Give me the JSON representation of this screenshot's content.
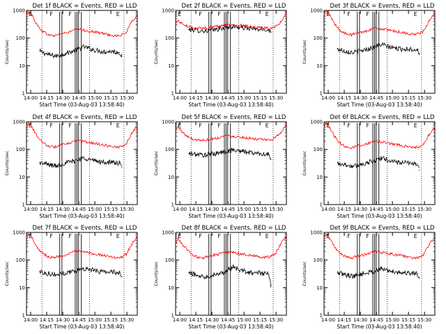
{
  "figure": {
    "background": "#ffffff",
    "axis_color": "#000000",
    "events_color": "#000000",
    "lld_color": "#ff0000"
  },
  "chart_data": [
    {
      "type": "line",
      "title": "Det 1f BLACK = Events, RED = LLD",
      "ylabel": "Counts/sec",
      "xlabel": "Start Time (03-Aug-03 13:58:40)",
      "yscale": "log",
      "ylim": [
        1,
        1000
      ],
      "yticks": [
        "1",
        "10",
        "100",
        "1000"
      ],
      "xlim": [
        0,
        100
      ],
      "xticks": [
        "14:00",
        "14:15",
        "14:30",
        "14:45",
        "15:00",
        "15:15",
        "15:30"
      ],
      "markers": [
        {
          "label": "E",
          "x": 2
        },
        {
          "label": "F",
          "x": 21
        },
        {
          "label": "F",
          "x": 38
        },
        {
          "label": "E",
          "x": 81
        }
      ],
      "series": [
        {
          "name": "Events",
          "color": "#000000",
          "x": [
            12,
            20,
            27,
            35,
            43,
            52,
            60,
            69,
            77,
            84,
            86
          ],
          "y": [
            33,
            25,
            22,
            28,
            34,
            48,
            38,
            32,
            33,
            30,
            22
          ]
        },
        {
          "name": "LLD",
          "color": "#ff0000",
          "x": [
            0,
            2,
            5,
            10,
            15,
            20,
            25,
            30,
            38,
            45,
            52,
            60,
            68,
            75,
            82,
            86,
            90,
            95,
            100
          ],
          "y": [
            700,
            900,
            650,
            280,
            170,
            130,
            120,
            140,
            160,
            210,
            190,
            170,
            150,
            130,
            120,
            130,
            160,
            380,
            700
          ]
        }
      ]
    },
    {
      "type": "line",
      "title": "Det 2f BLACK = Events, RED = LLD",
      "ylabel": "Counts/sec",
      "xlabel": "Start Time (03-Aug-03 13:58:40)",
      "yscale": "log",
      "ylim": [
        1,
        1000
      ],
      "yticks": [
        "1",
        "10",
        "100",
        "1000"
      ],
      "xlim": [
        0,
        100
      ],
      "xticks": [
        "14:00",
        "14:15",
        "14:30",
        "14:45",
        "15:00",
        "15:15",
        "15:30"
      ],
      "markers": [
        {
          "label": "E",
          "x": 2
        },
        {
          "label": "F",
          "x": 21
        },
        {
          "label": "F",
          "x": 38
        },
        {
          "label": "E",
          "x": 81
        }
      ],
      "series": [
        {
          "name": "Events",
          "color": "#000000",
          "x": [
            12,
            20,
            27,
            35,
            43,
            52,
            60,
            69,
            77,
            84,
            86
          ],
          "y": [
            205,
            190,
            180,
            200,
            230,
            260,
            240,
            215,
            205,
            200,
            160
          ]
        },
        {
          "name": "LLD",
          "color": "#ff0000",
          "x": [
            0,
            2,
            5,
            10,
            15,
            20,
            25,
            30,
            38,
            45,
            52,
            60,
            68,
            75,
            82,
            86,
            90,
            95,
            100
          ],
          "y": [
            330,
            430,
            350,
            270,
            240,
            230,
            230,
            240,
            270,
            310,
            300,
            280,
            260,
            240,
            230,
            235,
            260,
            380,
            720
          ]
        }
      ]
    },
    {
      "type": "line",
      "title": "Det 3f BLACK = Events, RED = LLD",
      "ylabel": "Counts/sec",
      "xlabel": "Start Time (03-Aug-03 13:58:40)",
      "yscale": "log",
      "ylim": [
        1,
        1000
      ],
      "yticks": [
        "1",
        "10",
        "100",
        "1000"
      ],
      "xlim": [
        0,
        100
      ],
      "xticks": [
        "14:00",
        "14:15",
        "14:30",
        "14:45",
        "15:00",
        "15:15",
        "15:30"
      ],
      "markers": [
        {
          "label": "E",
          "x": 2
        },
        {
          "label": "F",
          "x": 21
        },
        {
          "label": "F",
          "x": 38
        },
        {
          "label": "E",
          "x": 81
        }
      ],
      "series": [
        {
          "name": "Events",
          "color": "#000000",
          "x": [
            12,
            20,
            27,
            35,
            43,
            52,
            60,
            69,
            77,
            84,
            86
          ],
          "y": [
            40,
            33,
            30,
            36,
            44,
            58,
            46,
            40,
            40,
            38,
            28
          ]
        },
        {
          "name": "LLD",
          "color": "#ff0000",
          "x": [
            0,
            2,
            5,
            10,
            15,
            20,
            25,
            30,
            38,
            45,
            52,
            60,
            68,
            75,
            82,
            86,
            90,
            95,
            100
          ],
          "y": [
            750,
            950,
            700,
            300,
            180,
            140,
            130,
            150,
            180,
            230,
            210,
            185,
            165,
            145,
            135,
            145,
            180,
            420,
            800
          ]
        }
      ]
    },
    {
      "type": "line",
      "title": "Det 4f BLACK = Events, RED = LLD",
      "ylabel": "Counts/sec",
      "xlabel": "Start Time (03-Aug-03 13:58:40)",
      "yscale": "log",
      "ylim": [
        1,
        1000
      ],
      "yticks": [
        "1",
        "10",
        "100",
        "1000"
      ],
      "xlim": [
        0,
        100
      ],
      "xticks": [
        "14:00",
        "14:15",
        "14:30",
        "14:45",
        "15:00",
        "15:15",
        "15:30"
      ],
      "markers": [
        {
          "label": "E",
          "x": 2
        },
        {
          "label": "F",
          "x": 21
        },
        {
          "label": "F",
          "x": 38
        },
        {
          "label": "E",
          "x": 81
        }
      ],
      "series": [
        {
          "name": "Events",
          "color": "#000000",
          "x": [
            12,
            20,
            27,
            35,
            43,
            52,
            60,
            69,
            77,
            84,
            86
          ],
          "y": [
            33,
            28,
            25,
            32,
            38,
            50,
            40,
            34,
            34,
            31,
            22
          ]
        },
        {
          "name": "LLD",
          "color": "#ff0000",
          "x": [
            0,
            2,
            5,
            10,
            15,
            20,
            25,
            30,
            38,
            45,
            52,
            60,
            68,
            75,
            82,
            86,
            90,
            95,
            100
          ],
          "y": [
            700,
            900,
            650,
            280,
            170,
            130,
            120,
            140,
            160,
            210,
            190,
            170,
            150,
            130,
            120,
            130,
            160,
            380,
            700
          ]
        }
      ]
    },
    {
      "type": "line",
      "title": "Det 5f BLACK = Events, RED = LLD",
      "ylabel": "Counts/sec",
      "xlabel": "Start Time (03-Aug-03 13:58:40)",
      "yscale": "log",
      "ylim": [
        1,
        1000
      ],
      "yticks": [
        "1",
        "10",
        "100",
        "1000"
      ],
      "xlim": [
        0,
        100
      ],
      "xticks": [
        "14:00",
        "14:15",
        "14:30",
        "14:45",
        "15:00",
        "15:15",
        "15:30"
      ],
      "markers": [
        {
          "label": "E",
          "x": 2
        },
        {
          "label": "F",
          "x": 21
        },
        {
          "label": "F",
          "x": 38
        },
        {
          "label": "E",
          "x": 81
        }
      ],
      "series": [
        {
          "name": "Events",
          "color": "#000000",
          "x": [
            12,
            20,
            27,
            35,
            43,
            52,
            60,
            69,
            77,
            84,
            86
          ],
          "y": [
            70,
            65,
            62,
            70,
            80,
            95,
            85,
            75,
            70,
            65,
            45
          ]
        },
        {
          "name": "LLD",
          "color": "#ff0000",
          "x": [
            0,
            2,
            5,
            10,
            15,
            20,
            25,
            30,
            38,
            45,
            52,
            60,
            68,
            75,
            82,
            86,
            90,
            95,
            100
          ],
          "y": [
            500,
            650,
            480,
            300,
            240,
            220,
            215,
            230,
            260,
            320,
            300,
            275,
            250,
            230,
            215,
            225,
            260,
            420,
            800
          ]
        }
      ]
    },
    {
      "type": "line",
      "title": "Det 6f BLACK = Events, RED = LLD",
      "ylabel": "Counts/sec",
      "xlabel": "Start Time (03-Aug-03 13:58:40)",
      "yscale": "log",
      "ylim": [
        1,
        1000
      ],
      "yticks": [
        "1",
        "10",
        "100",
        "1000"
      ],
      "xlim": [
        0,
        100
      ],
      "xticks": [
        "14:00",
        "14:15",
        "14:30",
        "14:45",
        "15:00",
        "15:15",
        "15:30"
      ],
      "markers": [
        {
          "label": "E",
          "x": 2
        },
        {
          "label": "F",
          "x": 21
        },
        {
          "label": "F",
          "x": 38
        },
        {
          "label": "E",
          "x": 81
        }
      ],
      "series": [
        {
          "name": "Events",
          "color": "#000000",
          "x": [
            12,
            20,
            27,
            35,
            43,
            52,
            60,
            69,
            77,
            84,
            86
          ],
          "y": [
            32,
            27,
            24,
            30,
            36,
            48,
            38,
            33,
            32,
            30,
            18
          ]
        },
        {
          "name": "LLD",
          "color": "#ff0000",
          "x": [
            0,
            2,
            5,
            10,
            15,
            20,
            25,
            30,
            38,
            45,
            52,
            60,
            68,
            75,
            82,
            86,
            90,
            95,
            100
          ],
          "y": [
            650,
            850,
            600,
            270,
            160,
            125,
            115,
            135,
            155,
            200,
            185,
            165,
            145,
            125,
            115,
            125,
            155,
            360,
            650
          ]
        }
      ]
    },
    {
      "type": "line",
      "title": "Det 7f BLACK = Events, RED = LLD",
      "ylabel": "Counts/sec",
      "xlabel": "Start Time (03-Aug-03 13:58:40)",
      "yscale": "log",
      "ylim": [
        1,
        1000
      ],
      "yticks": [
        "1",
        "10",
        "100",
        "1000"
      ],
      "xlim": [
        0,
        100
      ],
      "xticks": [
        "14:00",
        "14:15",
        "14:30",
        "14:45",
        "15:00",
        "15:15",
        "15:30"
      ],
      "markers": [
        {
          "label": "E",
          "x": 2
        },
        {
          "label": "F",
          "x": 21
        },
        {
          "label": "F",
          "x": 38
        },
        {
          "label": "E",
          "x": 81
        }
      ],
      "series": [
        {
          "name": "Events",
          "color": "#000000",
          "x": [
            12,
            20,
            27,
            35,
            43,
            52,
            60,
            69,
            77,
            84,
            86
          ],
          "y": [
            38,
            32,
            29,
            34,
            40,
            50,
            42,
            38,
            37,
            35,
            25
          ]
        },
        {
          "name": "LLD",
          "color": "#ff0000",
          "x": [
            0,
            2,
            5,
            10,
            15,
            20,
            25,
            30,
            38,
            45,
            52,
            60,
            68,
            75,
            82,
            86,
            90,
            95,
            100
          ],
          "y": [
            700,
            900,
            650,
            280,
            170,
            130,
            120,
            140,
            160,
            210,
            190,
            170,
            150,
            130,
            120,
            130,
            160,
            380,
            700
          ]
        }
      ]
    },
    {
      "type": "line",
      "title": "Det 8f BLACK = Events, RED = LLD",
      "ylabel": "Counts/sec",
      "xlabel": "Start Time (03-Aug-03 13:58:40)",
      "yscale": "log",
      "ylim": [
        1,
        1000
      ],
      "yticks": [
        "1",
        "10",
        "100",
        "1000"
      ],
      "xlim": [
        0,
        100
      ],
      "xticks": [
        "14:00",
        "14:15",
        "14:30",
        "14:45",
        "15:00",
        "15:15",
        "15:30"
      ],
      "markers": [
        {
          "label": "E",
          "x": 2
        },
        {
          "label": "F",
          "x": 21
        },
        {
          "label": "F",
          "x": 38
        },
        {
          "label": "E",
          "x": 81
        }
      ],
      "series": [
        {
          "name": "Events",
          "color": "#000000",
          "x": [
            12,
            20,
            27,
            35,
            43,
            52,
            60,
            69,
            77,
            84,
            86
          ],
          "y": [
            34,
            28,
            25,
            30,
            36,
            55,
            40,
            34,
            34,
            30,
            12
          ]
        },
        {
          "name": "LLD",
          "color": "#ff0000",
          "x": [
            0,
            2,
            5,
            10,
            15,
            20,
            25,
            30,
            38,
            45,
            52,
            60,
            68,
            75,
            82,
            86,
            90,
            95,
            100
          ],
          "y": [
            350,
            600,
            420,
            250,
            160,
            125,
            120,
            140,
            160,
            200,
            185,
            165,
            150,
            130,
            125,
            135,
            170,
            390,
            750
          ]
        }
      ]
    },
    {
      "type": "line",
      "title": "Det 9f BLACK = Events, RED = LLD",
      "ylabel": "Counts/sec",
      "xlabel": "Start Time (03-Aug-03 13:58:40)",
      "yscale": "log",
      "ylim": [
        1,
        1000
      ],
      "yticks": [
        "1",
        "10",
        "100",
        "1000"
      ],
      "xlim": [
        0,
        100
      ],
      "xticks": [
        "14:00",
        "14:15",
        "14:30",
        "14:45",
        "15:00",
        "15:15",
        "15:30"
      ],
      "markers": [
        {
          "label": "E",
          "x": 2
        },
        {
          "label": "F",
          "x": 21
        },
        {
          "label": "F",
          "x": 38
        },
        {
          "label": "E",
          "x": 81
        }
      ],
      "series": [
        {
          "name": "Events",
          "color": "#000000",
          "x": [
            12,
            20,
            27,
            35,
            43,
            52,
            60,
            69,
            77,
            84,
            86
          ],
          "y": [
            34,
            29,
            26,
            32,
            37,
            48,
            40,
            35,
            34,
            32,
            22
          ]
        },
        {
          "name": "LLD",
          "color": "#ff0000",
          "x": [
            0,
            2,
            5,
            10,
            15,
            20,
            25,
            30,
            38,
            45,
            52,
            60,
            68,
            75,
            82,
            86,
            90,
            95,
            100
          ],
          "y": [
            650,
            850,
            620,
            270,
            165,
            128,
            118,
            138,
            158,
            205,
            188,
            168,
            148,
            128,
            118,
            128,
            158,
            370,
            680
          ]
        }
      ]
    }
  ]
}
